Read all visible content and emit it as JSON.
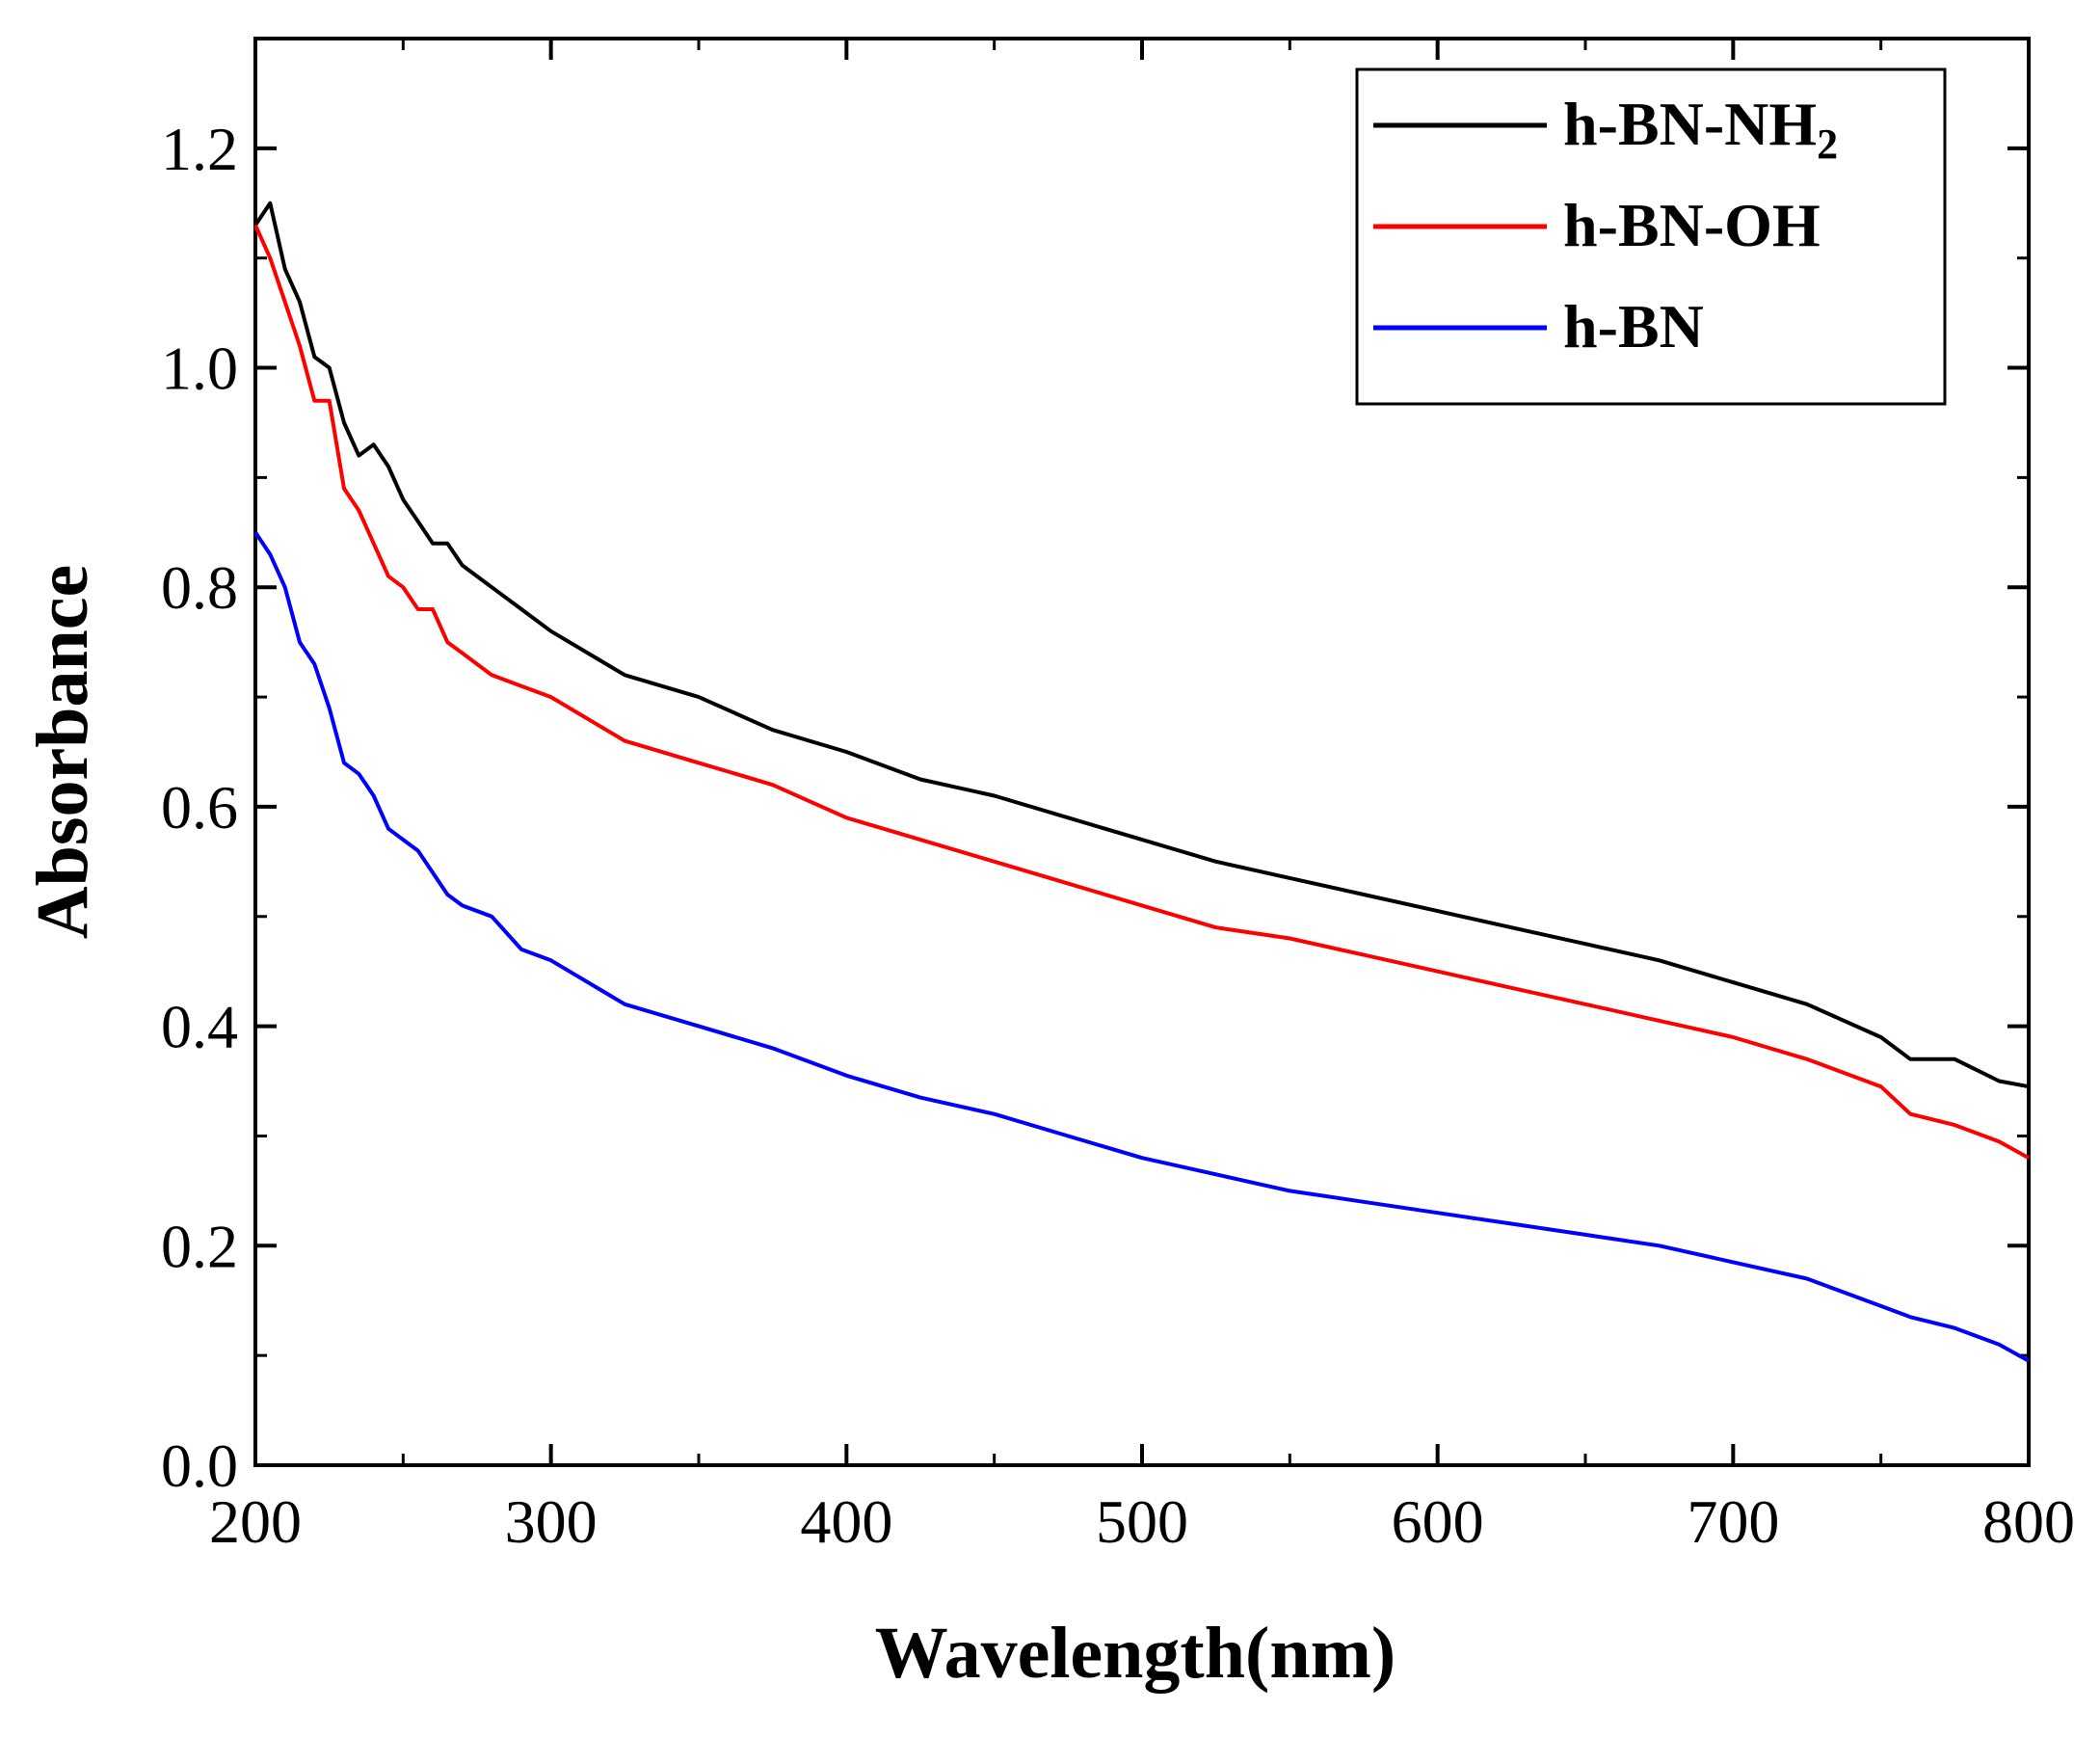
{
  "chart_data": {
    "type": "line",
    "xlabel": "Wavelength(nm)",
    "ylabel": "Absorbance",
    "xlim": [
      200,
      800
    ],
    "ylim": [
      0.0,
      1.3
    ],
    "xticks": [
      "200",
      "300",
      "400",
      "500",
      "600",
      "700",
      "800"
    ],
    "yticks": [
      "0.0",
      "0.2",
      "0.4",
      "0.6",
      "0.8",
      "1.0",
      "1.2"
    ],
    "grid": false,
    "legend_position": "top-right",
    "series": [
      {
        "name": "h-BN-NH",
        "name_subscript": "2",
        "color": "#000000",
        "x": [
          200,
          205,
          210,
          215,
          220,
          225,
          230,
          235,
          240,
          245,
          250,
          255,
          260,
          265,
          270,
          280,
          290,
          300,
          325,
          350,
          375,
          400,
          425,
          450,
          475,
          500,
          525,
          550,
          575,
          600,
          625,
          650,
          675,
          700,
          725,
          750,
          760,
          775,
          790,
          800
        ],
        "y": [
          1.13,
          1.15,
          1.09,
          1.06,
          1.01,
          1.0,
          0.95,
          0.92,
          0.93,
          0.91,
          0.88,
          0.86,
          0.84,
          0.84,
          0.82,
          0.8,
          0.78,
          0.76,
          0.72,
          0.7,
          0.67,
          0.65,
          0.625,
          0.61,
          0.59,
          0.57,
          0.55,
          0.535,
          0.52,
          0.505,
          0.49,
          0.475,
          0.46,
          0.44,
          0.42,
          0.39,
          0.37,
          0.37,
          0.35,
          0.345
        ]
      },
      {
        "name": "h-BN-OH",
        "color": "#ff0000",
        "x": [
          200,
          205,
          210,
          215,
          220,
          225,
          230,
          235,
          240,
          245,
          250,
          255,
          260,
          265,
          270,
          280,
          290,
          300,
          325,
          350,
          375,
          400,
          425,
          450,
          475,
          500,
          525,
          550,
          575,
          600,
          625,
          650,
          675,
          700,
          725,
          750,
          760,
          775,
          790,
          800
        ],
        "y": [
          1.13,
          1.1,
          1.06,
          1.02,
          0.97,
          0.97,
          0.89,
          0.87,
          0.84,
          0.81,
          0.8,
          0.78,
          0.78,
          0.75,
          0.74,
          0.72,
          0.71,
          0.7,
          0.66,
          0.64,
          0.62,
          0.59,
          0.57,
          0.55,
          0.53,
          0.51,
          0.49,
          0.48,
          0.465,
          0.45,
          0.435,
          0.42,
          0.405,
          0.39,
          0.37,
          0.345,
          0.32,
          0.31,
          0.295,
          0.28
        ]
      },
      {
        "name": "h-BN",
        "color": "#0000ff",
        "x": [
          200,
          205,
          210,
          215,
          220,
          225,
          230,
          235,
          240,
          245,
          250,
          255,
          260,
          265,
          270,
          280,
          290,
          300,
          325,
          350,
          375,
          400,
          425,
          450,
          475,
          500,
          525,
          550,
          575,
          600,
          625,
          650,
          675,
          700,
          725,
          750,
          760,
          775,
          790,
          800
        ],
        "y": [
          0.85,
          0.83,
          0.8,
          0.75,
          0.73,
          0.69,
          0.64,
          0.63,
          0.61,
          0.58,
          0.57,
          0.56,
          0.54,
          0.52,
          0.51,
          0.5,
          0.47,
          0.46,
          0.42,
          0.4,
          0.38,
          0.355,
          0.335,
          0.32,
          0.3,
          0.28,
          0.265,
          0.25,
          0.24,
          0.23,
          0.22,
          0.21,
          0.2,
          0.185,
          0.17,
          0.145,
          0.135,
          0.125,
          0.11,
          0.095
        ]
      }
    ]
  }
}
